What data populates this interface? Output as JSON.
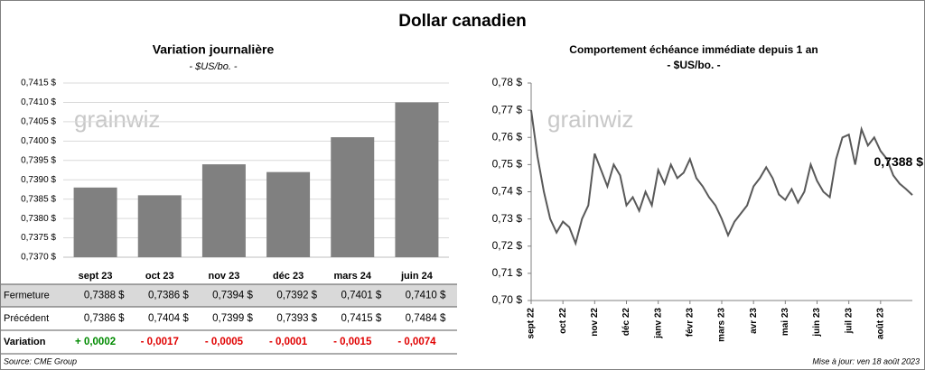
{
  "title": "Dollar canadien",
  "source": "Source: CME Group",
  "updated": "Mise à jour: ven 18 août 2023",
  "watermark": "grainwiz",
  "chart_data": [
    {
      "type": "bar",
      "title": "Variation  journalière",
      "subtitle": "- $US/bo. -",
      "categories": [
        "sept 23",
        "oct 23",
        "nov 23",
        "déc 23",
        "mars 24",
        "juin 24"
      ],
      "series": [
        {
          "name": "Fermeture",
          "color": "#808080",
          "values": [
            0.7388,
            0.7386,
            0.7394,
            0.7392,
            0.7401,
            0.741
          ],
          "value_labels": [
            "0,7388 $",
            "0,7386 $",
            "0,7394 $",
            "0,7392 $",
            "0,7401 $",
            "0,7410 $"
          ]
        }
      ],
      "table": [
        {
          "name": "Précédent",
          "values": [
            0.7386,
            0.7404,
            0.7399,
            0.7393,
            0.7415,
            0.7484
          ],
          "value_labels": [
            "0,7386 $",
            "0,7404 $",
            "0,7399 $",
            "0,7393 $",
            "0,7415 $",
            "0,7484 $"
          ]
        },
        {
          "name": "Variation",
          "values": [
            0.0002,
            -0.0017,
            -0.0005,
            -0.0001,
            -0.0015,
            -0.0074
          ],
          "value_labels": [
            "+ 0,0002",
            "- 0,0017",
            "- 0,0005",
            "- 0,0001",
            "- 0,0015",
            "- 0,0074"
          ]
        }
      ],
      "ylim": [
        0.737,
        0.7415
      ],
      "yticks": [
        {
          "value": 0.737,
          "label": "0,7370 $"
        },
        {
          "value": 0.7375,
          "label": "0,7375 $"
        },
        {
          "value": 0.738,
          "label": "0,7380 $"
        },
        {
          "value": 0.7385,
          "label": "0,7385 $"
        },
        {
          "value": 0.739,
          "label": "0,7390 $"
        },
        {
          "value": 0.7395,
          "label": "0,7395 $"
        },
        {
          "value": 0.74,
          "label": "0,7400 $"
        },
        {
          "value": 0.7405,
          "label": "0,7405 $"
        },
        {
          "value": 0.741,
          "label": "0,7410 $"
        },
        {
          "value": 0.7415,
          "label": "0,7415 $"
        }
      ]
    },
    {
      "type": "line",
      "title": "Comportement échéance immédiate depuis 1 an",
      "subtitle": "- $US/bo. -",
      "categories": [
        "sept 22",
        null,
        null,
        null,
        null,
        "oct 22",
        null,
        null,
        null,
        null,
        "nov 22",
        null,
        null,
        null,
        null,
        "déc 22",
        null,
        null,
        null,
        null,
        "janv 23",
        null,
        null,
        null,
        null,
        "févr 23",
        null,
        null,
        null,
        null,
        "mars 23",
        null,
        null,
        null,
        null,
        "avr 23",
        null,
        null,
        null,
        null,
        "mai 23",
        null,
        null,
        null,
        null,
        "juin 23",
        null,
        null,
        null,
        null,
        "juil 23",
        null,
        null,
        null,
        null,
        "août 23",
        null,
        null,
        null,
        null,
        null
      ],
      "series": [
        {
          "name": "Dollar canadien",
          "color": "#595959",
          "values": [
            0.77,
            0.753,
            0.74,
            0.73,
            0.725,
            0.729,
            0.727,
            0.721,
            0.73,
            0.735,
            0.754,
            0.748,
            0.742,
            0.75,
            0.746,
            0.735,
            0.738,
            0.733,
            0.74,
            0.735,
            0.748,
            0.743,
            0.75,
            0.745,
            0.747,
            0.752,
            0.745,
            0.742,
            0.738,
            0.735,
            0.73,
            0.724,
            0.729,
            0.732,
            0.735,
            0.742,
            0.745,
            0.749,
            0.745,
            0.739,
            0.737,
            0.741,
            0.736,
            0.74,
            0.75,
            0.744,
            0.74,
            0.738,
            0.752,
            0.76,
            0.761,
            0.75,
            0.763,
            0.757,
            0.76,
            0.755,
            0.752,
            0.746,
            0.743,
            0.741,
            0.7388
          ]
        }
      ],
      "annotation": {
        "text": "0,7388 $",
        "value": 0.7388
      },
      "ylim": [
        0.7,
        0.78
      ],
      "yticks": [
        {
          "value": 0.7,
          "label": "0,70 $"
        },
        {
          "value": 0.71,
          "label": "0,71 $"
        },
        {
          "value": 0.72,
          "label": "0,72 $"
        },
        {
          "value": 0.73,
          "label": "0,73 $"
        },
        {
          "value": 0.74,
          "label": "0,74 $"
        },
        {
          "value": 0.75,
          "label": "0,75 $"
        },
        {
          "value": 0.76,
          "label": "0,76 $"
        },
        {
          "value": 0.77,
          "label": "0,77 $"
        },
        {
          "value": 0.78,
          "label": "0,78 $"
        }
      ]
    }
  ]
}
